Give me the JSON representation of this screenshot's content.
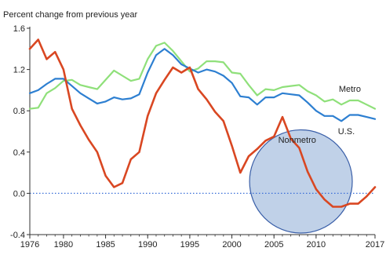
{
  "chart_data": {
    "type": "line",
    "title": "Percent change from previous year",
    "xlabel": "",
    "ylabel": "",
    "xlim": [
      1976,
      2017
    ],
    "ylim": [
      -0.4,
      1.6
    ],
    "x_ticks": [
      {
        "value": 1976,
        "label": "1976"
      },
      {
        "value": 1980,
        "label": "1980"
      },
      {
        "value": 1985,
        "label": "1985"
      },
      {
        "value": 1990,
        "label": "1990"
      },
      {
        "value": 1995,
        "label": "1995"
      },
      {
        "value": 2000,
        "label": "2000"
      },
      {
        "value": 2005,
        "label": "2005"
      },
      {
        "value": 2010,
        "label": "2010"
      },
      {
        "value": 2017,
        "label": "2017"
      }
    ],
    "y_ticks": [
      {
        "value": -0.4,
        "label": "-0.4"
      },
      {
        "value": 0.0,
        "label": "0.0"
      },
      {
        "value": 0.4,
        "label": "0.4"
      },
      {
        "value": 0.8,
        "label": "0.8"
      },
      {
        "value": 1.2,
        "label": "1.2"
      },
      {
        "value": 1.6,
        "label": "1.6"
      }
    ],
    "grid": false,
    "zero_line": {
      "value": 0.0,
      "color": "#3a6fd8",
      "style": "dotted"
    },
    "series": [
      {
        "name": "Metro",
        "color": "#8fe07a",
        "x": [
          1976,
          1977,
          1978,
          1979,
          1980,
          1981,
          1982,
          1983,
          1984,
          1985,
          1986,
          1987,
          1988,
          1989,
          1990,
          1991,
          1992,
          1993,
          1994,
          1995,
          1996,
          1997,
          1998,
          1999,
          2000,
          2001,
          2002,
          2003,
          2004,
          2005,
          2006,
          2007,
          2008,
          2009,
          2010,
          2011,
          2012,
          2013,
          2014,
          2015,
          2016,
          2017
        ],
        "values": [
          0.82,
          0.83,
          0.97,
          1.02,
          1.09,
          1.1,
          1.05,
          1.03,
          1.01,
          1.1,
          1.19,
          1.14,
          1.09,
          1.11,
          1.3,
          1.43,
          1.46,
          1.38,
          1.28,
          1.18,
          1.21,
          1.28,
          1.28,
          1.27,
          1.17,
          1.16,
          1.05,
          0.95,
          1.01,
          1.0,
          1.03,
          1.04,
          1.05,
          0.99,
          0.95,
          0.89,
          0.91,
          0.86,
          0.9,
          0.9,
          0.86,
          0.82
        ]
      },
      {
        "name": "U.S.",
        "color": "#2d7fd1",
        "x": [
          1976,
          1977,
          1978,
          1979,
          1980,
          1981,
          1982,
          1983,
          1984,
          1985,
          1986,
          1987,
          1988,
          1989,
          1990,
          1991,
          1992,
          1993,
          1994,
          1995,
          1996,
          1997,
          1998,
          1999,
          2000,
          2001,
          2002,
          2003,
          2004,
          2005,
          2006,
          2007,
          2008,
          2009,
          2010,
          2011,
          2012,
          2013,
          2014,
          2015,
          2016,
          2017
        ],
        "values": [
          0.97,
          1.0,
          1.06,
          1.11,
          1.11,
          1.04,
          0.97,
          0.92,
          0.87,
          0.89,
          0.93,
          0.91,
          0.92,
          0.96,
          1.17,
          1.34,
          1.4,
          1.34,
          1.25,
          1.21,
          1.17,
          1.2,
          1.18,
          1.14,
          1.07,
          0.94,
          0.93,
          0.86,
          0.93,
          0.93,
          0.97,
          0.96,
          0.95,
          0.88,
          0.8,
          0.75,
          0.75,
          0.7,
          0.76,
          0.76,
          0.74,
          0.72
        ]
      },
      {
        "name": "Nonmetro",
        "color": "#d94722",
        "x": [
          1976,
          1977,
          1978,
          1979,
          1980,
          1981,
          1982,
          1983,
          1984,
          1985,
          1986,
          1987,
          1988,
          1989,
          1990,
          1991,
          1992,
          1993,
          1994,
          1995,
          1996,
          1997,
          1998,
          1999,
          2000,
          2001,
          2002,
          2003,
          2004,
          2005,
          2006,
          2007,
          2008,
          2009,
          2010,
          2011,
          2012,
          2013,
          2014,
          2015,
          2016,
          2017
        ],
        "values": [
          1.4,
          1.49,
          1.3,
          1.37,
          1.2,
          0.82,
          0.66,
          0.52,
          0.4,
          0.17,
          0.06,
          0.1,
          0.33,
          0.4,
          0.75,
          0.97,
          1.1,
          1.22,
          1.17,
          1.22,
          1.01,
          0.91,
          0.79,
          0.7,
          0.46,
          0.2,
          0.36,
          0.43,
          0.51,
          0.55,
          0.74,
          0.53,
          0.44,
          0.21,
          0.04,
          -0.06,
          -0.13,
          -0.13,
          -0.1,
          -0.1,
          -0.03,
          0.06
        ]
      }
    ],
    "annotations": [
      {
        "text": "Metro",
        "series": "Metro"
      },
      {
        "text": "U.S.",
        "series": "U.S."
      },
      {
        "text": "Nonmetro",
        "series": "Nonmetro"
      }
    ],
    "highlight_ellipse": {
      "center_x": 2008.2,
      "center_y": 0.115,
      "radius_x": 6.1,
      "radius_y": 0.5,
      "fill": "#a8bfdf",
      "stroke": "#3a5fa8"
    }
  }
}
